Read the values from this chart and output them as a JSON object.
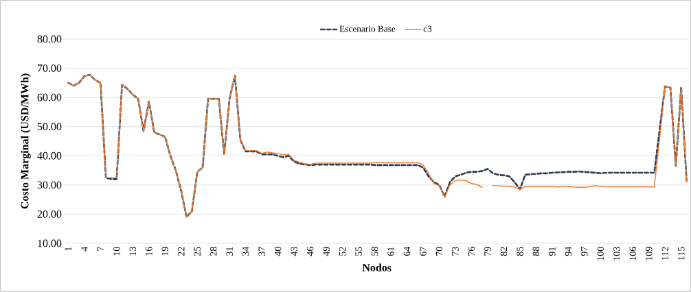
{
  "chart_data": {
    "type": "line",
    "xlabel": "Nodos",
    "ylabel": "Costo Marginal (USD/MWh)",
    "categories": [
      "1",
      null,
      null,
      "4",
      null,
      null,
      "7",
      null,
      null,
      "10",
      null,
      null,
      "13",
      null,
      null,
      "16",
      null,
      null,
      "19",
      null,
      null,
      "22",
      null,
      null,
      "25",
      null,
      null,
      "28",
      null,
      null,
      "31",
      null,
      null,
      "34",
      null,
      null,
      "37",
      null,
      null,
      "40",
      null,
      null,
      "43",
      null,
      null,
      "46",
      null,
      null,
      "49",
      null,
      null,
      "52",
      null,
      null,
      "55",
      null,
      null,
      "58",
      null,
      null,
      "61",
      null,
      null,
      "64",
      null,
      null,
      "67",
      null,
      null,
      "70",
      null,
      null,
      "73",
      null,
      null,
      "76",
      null,
      null,
      "79",
      null,
      null,
      "82",
      null,
      null,
      "85",
      null,
      null,
      "88",
      null,
      null,
      "91",
      null,
      null,
      "94",
      null,
      null,
      "97",
      null,
      null,
      "100",
      null,
      null,
      "103",
      null,
      null,
      "106",
      null,
      null,
      "109",
      null,
      null,
      "112",
      null,
      null,
      "115",
      null
    ],
    "series": [
      {
        "name": "Escenario Base",
        "color": "#2e3b52",
        "line_style": "dashed",
        "values": [
          65,
          64,
          65,
          67.3,
          67.8,
          66,
          65,
          32.5,
          32,
          32,
          64.3,
          63,
          61,
          59.5,
          48.5,
          58.5,
          48,
          47.3,
          46.5,
          40,
          35,
          28,
          19,
          21,
          34.5,
          36,
          59.5,
          59.5,
          59.5,
          40.5,
          59.5,
          67.5,
          45.5,
          41.5,
          41.5,
          41.5,
          40.5,
          40.5,
          40.5,
          40,
          39.5,
          40,
          38,
          37.3,
          37,
          36.8,
          37,
          37,
          37,
          37,
          37,
          37,
          37,
          37,
          37,
          37,
          37,
          36.8,
          36.8,
          36.8,
          36.8,
          36.8,
          36.8,
          36.8,
          36.8,
          36.8,
          36,
          33,
          31,
          30,
          26,
          31,
          33,
          33.5,
          34.2,
          34.5,
          34.5,
          34.8,
          35.5,
          34,
          33.5,
          33.3,
          33,
          31,
          28.5,
          33.5,
          33.7,
          33.8,
          34,
          34,
          34.2,
          34.3,
          34.4,
          34.5,
          34.5,
          34.6,
          34.5,
          34.3,
          34.2,
          34,
          34.2,
          34.2,
          34.2,
          34.2,
          34.2,
          34.2,
          34.2,
          34.2,
          34.2,
          34.2,
          49,
          63.8,
          63.3,
          36.5,
          63.5,
          31.5
        ]
      },
      {
        "name": "c3",
        "color": "#ed7d31",
        "line_style": "solid",
        "values": [
          65,
          64,
          65,
          67.3,
          67.8,
          66,
          65,
          32.5,
          32.5,
          32.5,
          64.3,
          63,
          61,
          59.5,
          48.5,
          58.5,
          48,
          47.3,
          46.5,
          40,
          35,
          28,
          19,
          21,
          34.5,
          36,
          59.5,
          59.5,
          59.5,
          40.5,
          59.5,
          67.5,
          45.5,
          41.8,
          41.8,
          41.8,
          40.8,
          41.3,
          41,
          40.8,
          40.3,
          40.5,
          38.5,
          37.8,
          37.3,
          37,
          37.5,
          37.5,
          37.5,
          37.5,
          37.5,
          37.5,
          37.5,
          37.5,
          37.5,
          37.5,
          37.5,
          37.6,
          37.6,
          37.6,
          37.6,
          37.6,
          37.6,
          37.6,
          37.6,
          37.6,
          37,
          34,
          30.5,
          29.8,
          25.8,
          30,
          31.5,
          31.7,
          31.5,
          30.5,
          30.2,
          29.2,
          null,
          29.8,
          29.7,
          29.6,
          29.5,
          29.3,
          28.5,
          29.5,
          29.5,
          29.5,
          29.5,
          29.5,
          29.5,
          29.3,
          29.5,
          29.5,
          29.3,
          29.2,
          29.2,
          29.4,
          29.8,
          29.5,
          29.4,
          29.4,
          29.4,
          29.4,
          29.4,
          29.4,
          29.4,
          29.4,
          29.4,
          29.4,
          46,
          63.8,
          63.3,
          36.5,
          63.5,
          31
        ]
      }
    ],
    "ylim": [
      10,
      80
    ],
    "yticks": [
      {
        "value": 10,
        "label": "10.00"
      },
      {
        "value": 20,
        "label": "20.00"
      },
      {
        "value": 30,
        "label": "30.00"
      },
      {
        "value": 40,
        "label": "40.00"
      },
      {
        "value": 50,
        "label": "50.00"
      },
      {
        "value": 60,
        "label": "60.00"
      },
      {
        "value": 70,
        "label": "70.00"
      },
      {
        "value": 80,
        "label": "80.00"
      }
    ],
    "grid": "y",
    "legend": "top",
    "marker": "none"
  }
}
